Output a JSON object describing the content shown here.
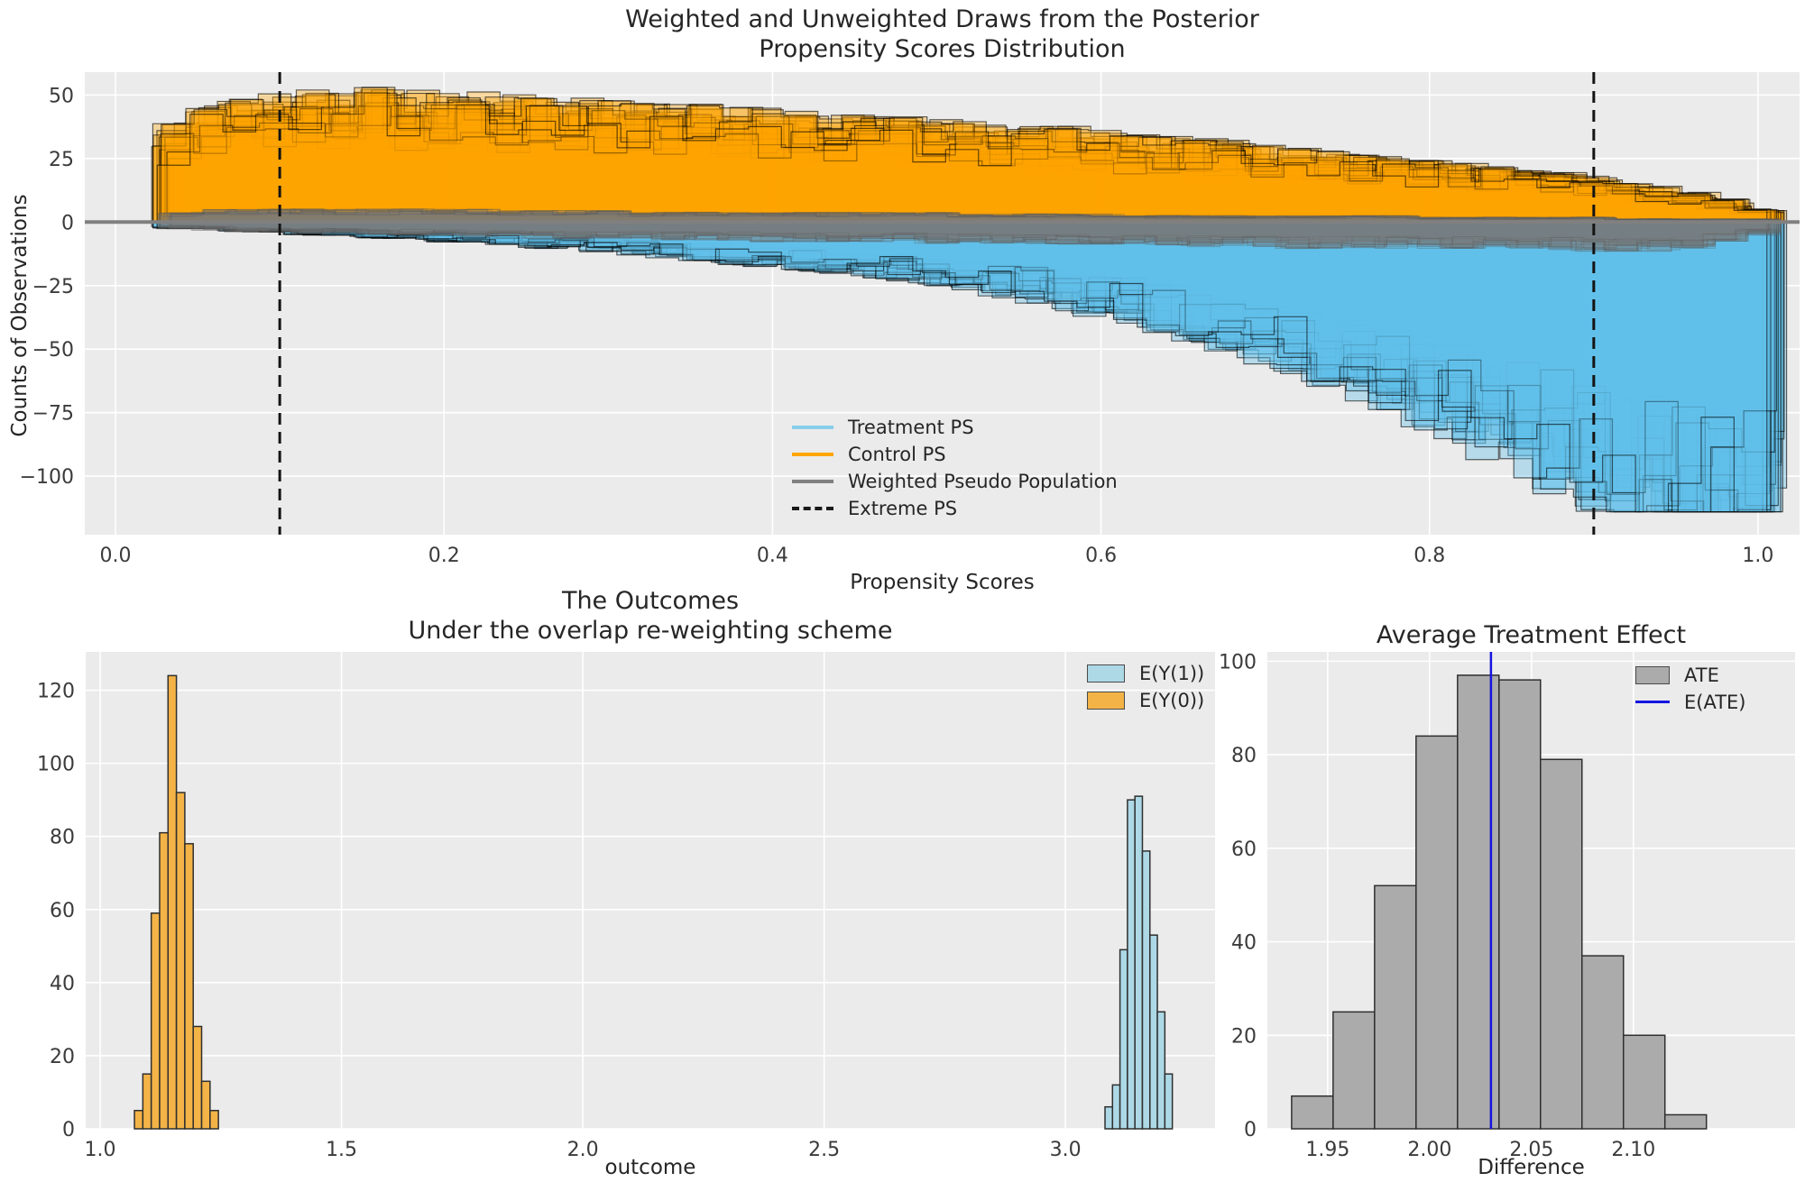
{
  "style": {
    "figure_bg": "#ffffff",
    "panel_bg": "#ebebeb",
    "grid": "#ffffff",
    "tick": "#3b3b3b",
    "text": "#262626",
    "bar_edge": "#2f2f2f"
  },
  "chart_data": [
    {
      "id": "posterior-draws",
      "type": "histogram-draws",
      "title_lines": [
        "Weighted and Unweighted Draws from the Posterior",
        "Propensity Scores Distribution"
      ],
      "xlabel": "Propensity Scores",
      "ylabel": "Counts of Observations",
      "xlim": [
        -0.0187,
        1.0253
      ],
      "ylim": [
        -123,
        59
      ],
      "x_ticks": [
        0.0,
        0.2,
        0.4,
        0.6,
        0.8,
        1.0
      ],
      "x_tick_labels": [
        "0.0",
        "0.2",
        "0.4",
        "0.6",
        "0.8",
        "1.0"
      ],
      "y_ticks": [
        50,
        25,
        0,
        -25,
        -50,
        -75,
        -100
      ],
      "y_tick_labels": [
        "50",
        "25",
        "0",
        "−25",
        "−50",
        "−75",
        "−100"
      ],
      "grid_on": true,
      "legend_position": "lower center",
      "extreme_ps": [
        0.1,
        0.9
      ],
      "zero_line_color": "#808080",
      "extreme_line_color": "#141414",
      "n_draws": 26,
      "n_draws_gray": 18,
      "seed": 11,
      "bin_start": 0.03,
      "bin_width": 0.02,
      "jitter_low": 0.7,
      "jitter_span": 0.6,
      "control_max": 53,
      "treatment_max": 114,
      "control_mean": [
        30,
        36,
        38,
        39,
        40,
        40,
        41,
        40,
        39,
        40,
        39,
        38,
        38,
        37,
        37,
        36,
        36,
        35,
        35,
        34,
        33,
        33,
        32,
        31,
        31,
        30,
        29,
        29,
        28,
        27,
        26,
        26,
        25,
        24,
        23,
        22,
        21,
        20,
        19,
        18,
        17,
        16,
        15,
        14,
        12,
        11,
        9,
        7,
        4
      ],
      "treatment_mean": [
        2,
        2,
        3,
        3,
        4,
        4,
        5,
        5,
        6,
        6,
        7,
        8,
        8,
        9,
        10,
        11,
        12,
        13,
        14,
        15,
        16,
        17,
        18,
        20,
        21,
        23,
        25,
        27,
        29,
        31,
        34,
        37,
        40,
        43,
        47,
        51,
        55,
        60,
        64,
        68,
        73,
        78,
        83,
        88,
        93,
        97,
        100,
        102,
        100
      ],
      "weighted_above_mean": [
        3,
        4,
        4,
        4,
        4,
        4,
        4,
        4,
        4,
        4,
        3.5,
        3.5,
        3.5,
        3.5,
        3,
        3,
        3,
        3,
        3,
        3,
        3,
        3,
        3,
        3,
        2.5,
        2.5,
        2.5,
        2.5,
        2.5,
        2,
        2,
        2,
        2,
        2,
        2,
        2,
        2,
        2,
        1.5,
        1.5,
        1.5,
        1.5,
        1.5,
        1.5,
        1,
        1,
        1,
        1,
        1
      ],
      "weighted_below_mean": [
        2,
        2.5,
        3,
        3,
        3.5,
        3.5,
        4,
        4,
        4,
        4.5,
        4.5,
        5,
        5,
        5,
        5,
        5.5,
        5.5,
        5.5,
        6,
        6,
        6,
        6,
        6,
        6.5,
        6.5,
        6.5,
        7,
        7,
        7,
        7,
        7,
        7.5,
        7.5,
        7.5,
        8,
        8,
        8,
        8,
        8,
        8,
        8.5,
        8.5,
        8.5,
        9,
        9,
        9,
        8,
        6,
        4
      ],
      "colors": {
        "control_fill": "rgba(255,165,0,0.34)",
        "treatment_fill": "rgba(96,192,235,0.38)",
        "hist_edge": "rgba(0,0,0,0.60)",
        "gray_fill": "rgba(125,125,125,0.13)",
        "gray_edge": "rgba(85,85,85,0.30)"
      },
      "legend": [
        {
          "label": "Treatment PS",
          "color": "#87CEEB",
          "style": "line"
        },
        {
          "label": "Control PS",
          "color": "#FFA500",
          "style": "line"
        },
        {
          "label": "Weighted Pseudo Population",
          "color": "#808080",
          "style": "line"
        },
        {
          "label": "Extreme PS",
          "color": "#1a1a1a",
          "style": "dashed"
        }
      ]
    },
    {
      "id": "outcomes",
      "type": "histogram",
      "title_lines": [
        "The Outcomes",
        "Under the overlap re-weighting scheme"
      ],
      "xlabel": "outcome",
      "ylabel": "",
      "xlim": [
        0.97,
        3.31
      ],
      "ylim": [
        0,
        130.5
      ],
      "x_ticks": [
        1.0,
        1.5,
        2.0,
        2.5,
        3.0
      ],
      "x_tick_labels": [
        "1.0",
        "1.5",
        "2.0",
        "2.5",
        "3.0"
      ],
      "y_ticks": [
        0,
        20,
        40,
        60,
        80,
        100,
        120
      ],
      "y_tick_labels": [
        "0",
        "20",
        "40",
        "60",
        "80",
        "100",
        "120"
      ],
      "grid_on": true,
      "legend_position": "upper right",
      "series": [
        {
          "name": "E(Y(1))",
          "color": "#ADD8E6",
          "bin_start": 3.082,
          "bin_width": 0.0155,
          "counts": [
            6,
            12,
            49,
            90,
            91,
            76,
            53,
            32,
            15
          ]
        },
        {
          "name": "E(Y(0))",
          "color": "#F3B347",
          "bin_start": 1.071,
          "bin_width": 0.0174,
          "counts": [
            5,
            15,
            59,
            81,
            124,
            92,
            78,
            28,
            13,
            5
          ]
        }
      ]
    },
    {
      "id": "ate",
      "type": "histogram",
      "title_lines": [
        "Average Treatment Effect"
      ],
      "xlabel": "Difference",
      "ylabel": "",
      "xlim": [
        1.9204,
        2.1793
      ],
      "ylim": [
        0,
        102
      ],
      "x_ticks": [
        1.95,
        2.0,
        2.05,
        2.1
      ],
      "x_tick_labels": [
        "1.95",
        "2.00",
        "2.05",
        "2.10"
      ],
      "y_ticks": [
        0,
        20,
        40,
        60,
        80,
        100
      ],
      "y_tick_labels": [
        "0",
        "20",
        "40",
        "60",
        "80",
        "100"
      ],
      "grid_on": true,
      "legend_position": "upper right",
      "series": [
        {
          "name": "ATE",
          "color": "#ABABAB",
          "bin_start": 1.9323,
          "bin_width": 0.02035,
          "counts": [
            7,
            25,
            52,
            84,
            97,
            96,
            79,
            37,
            20,
            3
          ]
        }
      ],
      "vline": {
        "name": "E(ATE)",
        "x": 2.0301,
        "color": "#1414e0"
      }
    }
  ]
}
